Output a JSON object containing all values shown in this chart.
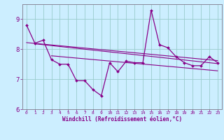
{
  "x": [
    0,
    1,
    2,
    3,
    4,
    5,
    6,
    7,
    8,
    9,
    10,
    11,
    12,
    13,
    14,
    15,
    16,
    17,
    18,
    19,
    20,
    21,
    22,
    23
  ],
  "y_main": [
    8.8,
    8.2,
    8.3,
    7.65,
    7.5,
    7.5,
    6.95,
    6.95,
    6.65,
    6.45,
    7.55,
    7.25,
    7.6,
    7.55,
    7.55,
    9.3,
    8.15,
    8.05,
    7.75,
    7.55,
    7.45,
    7.45,
    7.75,
    7.55
  ],
  "trend1_x": [
    0,
    23
  ],
  "trend1_y": [
    8.22,
    7.62
  ],
  "trend2_x": [
    1,
    23
  ],
  "trend2_y": [
    8.18,
    7.52
  ],
  "trend3_x": [
    3,
    23
  ],
  "trend3_y": [
    7.78,
    7.28
  ],
  "xlim": [
    -0.5,
    23.5
  ],
  "ylim": [
    6.0,
    9.5
  ],
  "yticks": [
    6,
    7,
    8,
    9
  ],
  "xticks": [
    0,
    1,
    2,
    3,
    4,
    5,
    6,
    7,
    8,
    9,
    10,
    11,
    12,
    13,
    14,
    15,
    16,
    17,
    18,
    19,
    20,
    21,
    22,
    23
  ],
  "xlabel": "Windchill (Refroidissement éolien,°C)",
  "line_color": "#880088",
  "bg_color": "#cceeff",
  "grid_color": "#99cccc",
  "spine_color": "#888899"
}
